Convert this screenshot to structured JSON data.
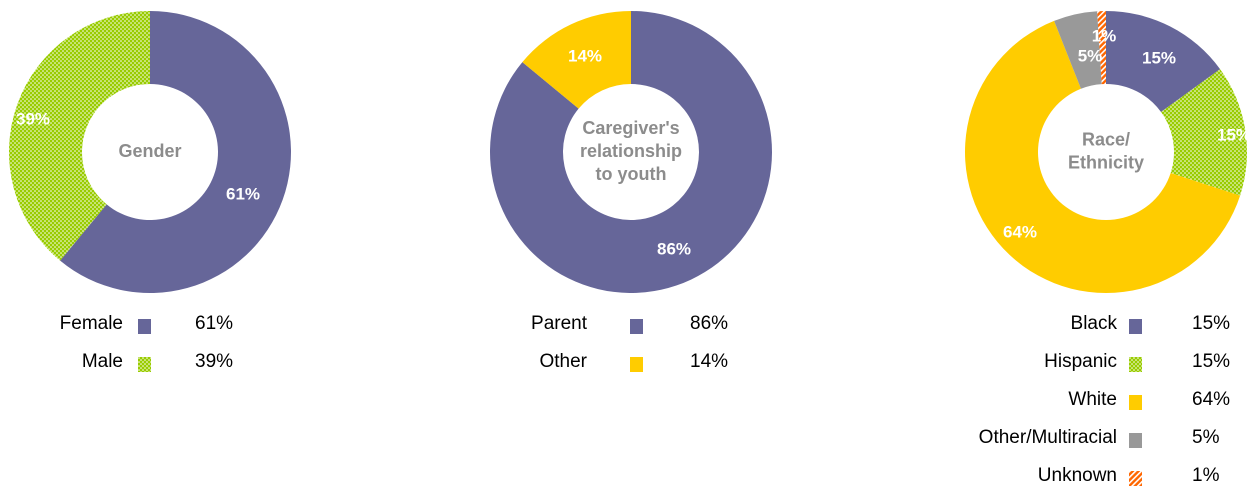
{
  "chart_data": [
    {
      "type": "pie",
      "title": "Gender",
      "categories": [
        "Female",
        "Male"
      ],
      "values": [
        61,
        39
      ],
      "value_labels": [
        "61%",
        "39%"
      ],
      "legend": [
        {
          "label": "Female",
          "value": "61%"
        },
        {
          "label": "Male",
          "value": "39%"
        }
      ],
      "colors": [
        "#666699",
        "#99CC00"
      ],
      "patterns": [
        "solid",
        "dots"
      ]
    },
    {
      "type": "pie",
      "title_lines": [
        "Caregiver's",
        "relationship",
        "to youth"
      ],
      "categories": [
        "Parent",
        "Other"
      ],
      "values": [
        86,
        14
      ],
      "value_labels": [
        "86%",
        "14%"
      ],
      "legend": [
        {
          "label": "Parent",
          "value": "86%"
        },
        {
          "label": "Other",
          "value": "14%"
        }
      ],
      "colors": [
        "#666699",
        "#FFCC00"
      ],
      "patterns": [
        "solid",
        "solid"
      ]
    },
    {
      "type": "pie",
      "title_lines": [
        "Race/",
        "Ethnicity"
      ],
      "categories": [
        "Black",
        "Hispanic",
        "White",
        "Other/Multiracial",
        "Unknown"
      ],
      "values": [
        15,
        15,
        64,
        5,
        1
      ],
      "value_labels": [
        "15%",
        "15%",
        "64%",
        "5%",
        "1%"
      ],
      "legend": [
        {
          "label": "Black",
          "value": "15%"
        },
        {
          "label": "Hispanic",
          "value": "15%"
        },
        {
          "label": "White",
          "value": "64%"
        },
        {
          "label": "Other/Multiracial",
          "value": "5%"
        },
        {
          "label": "Unknown",
          "value": "1%"
        }
      ],
      "colors": [
        "#666699",
        "#99CC00",
        "#FFCC00",
        "#999999",
        "#FF6600"
      ],
      "patterns": [
        "solid",
        "dots",
        "solid",
        "solid",
        "diagonal"
      ]
    }
  ]
}
